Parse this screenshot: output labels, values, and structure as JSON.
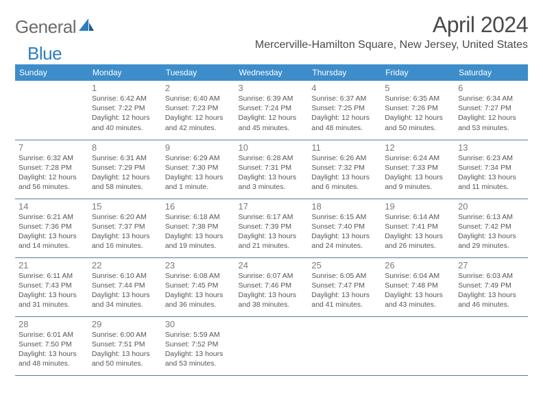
{
  "logo": {
    "part1": "General",
    "part2": "Blue"
  },
  "title": "April 2024",
  "location": "Mercerville-Hamilton Square, New Jersey, United States",
  "colors": {
    "header_bg": "#3d8dcb",
    "header_text": "#ffffff",
    "border": "#5a7a95",
    "logo_gray": "#6b6b6b",
    "logo_blue": "#2d7cc1",
    "body_text": "#555555",
    "title_text": "#4a4a4a"
  },
  "daysOfWeek": [
    "Sunday",
    "Monday",
    "Tuesday",
    "Wednesday",
    "Thursday",
    "Friday",
    "Saturday"
  ],
  "weeks": [
    [
      null,
      {
        "n": "1",
        "sr": "6:42 AM",
        "ss": "7:22 PM",
        "dl": "12 hours and 40 minutes."
      },
      {
        "n": "2",
        "sr": "6:40 AM",
        "ss": "7:23 PM",
        "dl": "12 hours and 42 minutes."
      },
      {
        "n": "3",
        "sr": "6:39 AM",
        "ss": "7:24 PM",
        "dl": "12 hours and 45 minutes."
      },
      {
        "n": "4",
        "sr": "6:37 AM",
        "ss": "7:25 PM",
        "dl": "12 hours and 48 minutes."
      },
      {
        "n": "5",
        "sr": "6:35 AM",
        "ss": "7:26 PM",
        "dl": "12 hours and 50 minutes."
      },
      {
        "n": "6",
        "sr": "6:34 AM",
        "ss": "7:27 PM",
        "dl": "12 hours and 53 minutes."
      }
    ],
    [
      {
        "n": "7",
        "sr": "6:32 AM",
        "ss": "7:28 PM",
        "dl": "12 hours and 56 minutes."
      },
      {
        "n": "8",
        "sr": "6:31 AM",
        "ss": "7:29 PM",
        "dl": "12 hours and 58 minutes."
      },
      {
        "n": "9",
        "sr": "6:29 AM",
        "ss": "7:30 PM",
        "dl": "13 hours and 1 minute."
      },
      {
        "n": "10",
        "sr": "6:28 AM",
        "ss": "7:31 PM",
        "dl": "13 hours and 3 minutes."
      },
      {
        "n": "11",
        "sr": "6:26 AM",
        "ss": "7:32 PM",
        "dl": "13 hours and 6 minutes."
      },
      {
        "n": "12",
        "sr": "6:24 AM",
        "ss": "7:33 PM",
        "dl": "13 hours and 9 minutes."
      },
      {
        "n": "13",
        "sr": "6:23 AM",
        "ss": "7:34 PM",
        "dl": "13 hours and 11 minutes."
      }
    ],
    [
      {
        "n": "14",
        "sr": "6:21 AM",
        "ss": "7:36 PM",
        "dl": "13 hours and 14 minutes."
      },
      {
        "n": "15",
        "sr": "6:20 AM",
        "ss": "7:37 PM",
        "dl": "13 hours and 16 minutes."
      },
      {
        "n": "16",
        "sr": "6:18 AM",
        "ss": "7:38 PM",
        "dl": "13 hours and 19 minutes."
      },
      {
        "n": "17",
        "sr": "6:17 AM",
        "ss": "7:39 PM",
        "dl": "13 hours and 21 minutes."
      },
      {
        "n": "18",
        "sr": "6:15 AM",
        "ss": "7:40 PM",
        "dl": "13 hours and 24 minutes."
      },
      {
        "n": "19",
        "sr": "6:14 AM",
        "ss": "7:41 PM",
        "dl": "13 hours and 26 minutes."
      },
      {
        "n": "20",
        "sr": "6:13 AM",
        "ss": "7:42 PM",
        "dl": "13 hours and 29 minutes."
      }
    ],
    [
      {
        "n": "21",
        "sr": "6:11 AM",
        "ss": "7:43 PM",
        "dl": "13 hours and 31 minutes."
      },
      {
        "n": "22",
        "sr": "6:10 AM",
        "ss": "7:44 PM",
        "dl": "13 hours and 34 minutes."
      },
      {
        "n": "23",
        "sr": "6:08 AM",
        "ss": "7:45 PM",
        "dl": "13 hours and 36 minutes."
      },
      {
        "n": "24",
        "sr": "6:07 AM",
        "ss": "7:46 PM",
        "dl": "13 hours and 38 minutes."
      },
      {
        "n": "25",
        "sr": "6:05 AM",
        "ss": "7:47 PM",
        "dl": "13 hours and 41 minutes."
      },
      {
        "n": "26",
        "sr": "6:04 AM",
        "ss": "7:48 PM",
        "dl": "13 hours and 43 minutes."
      },
      {
        "n": "27",
        "sr": "6:03 AM",
        "ss": "7:49 PM",
        "dl": "13 hours and 46 minutes."
      }
    ],
    [
      {
        "n": "28",
        "sr": "6:01 AM",
        "ss": "7:50 PM",
        "dl": "13 hours and 48 minutes."
      },
      {
        "n": "29",
        "sr": "6:00 AM",
        "ss": "7:51 PM",
        "dl": "13 hours and 50 minutes."
      },
      {
        "n": "30",
        "sr": "5:59 AM",
        "ss": "7:52 PM",
        "dl": "13 hours and 53 minutes."
      },
      null,
      null,
      null,
      null
    ]
  ],
  "labels": {
    "sunrise": "Sunrise:",
    "sunset": "Sunset:",
    "daylight": "Daylight:"
  }
}
